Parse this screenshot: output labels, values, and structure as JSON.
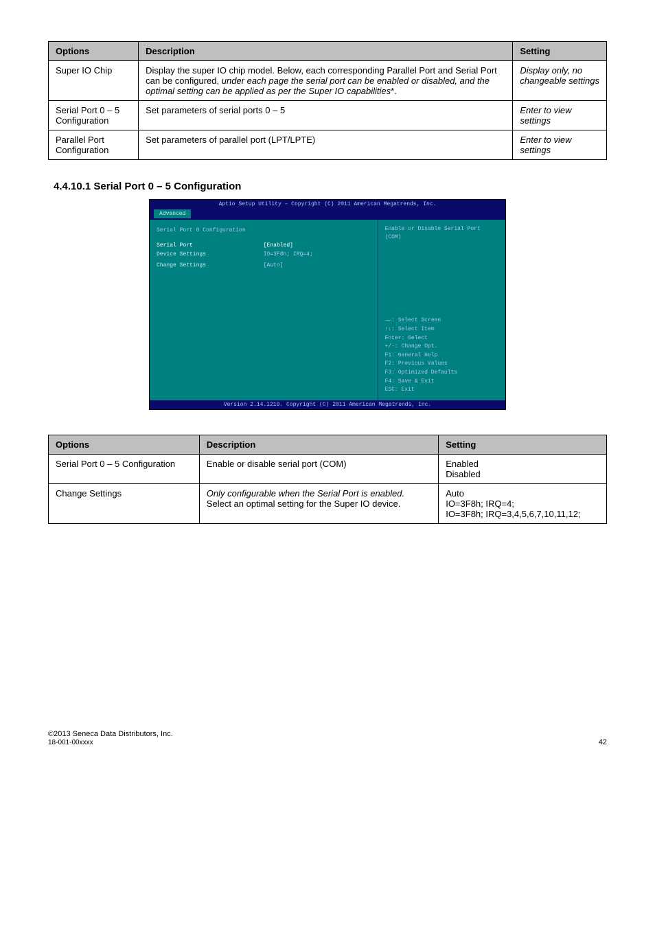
{
  "table1": {
    "headers": [
      "Options",
      "Description",
      "Setting"
    ],
    "rows": [
      [
        "Super IO Chip",
        "Display the super IO chip model. Below, each corresponding Parallel Port and Serial Port can be configured, <i>under each page the serial port can be enabled or disabled, and the optimal setting can be applied as per the Super IO capabilities</i>*.",
        "<i>Display only, no changeable settings</i>"
      ],
      [
        "Serial Port 0 – 5 Configuration",
        "Set parameters of serial ports 0 – 5",
        "<i>Enter to view settings</i>"
      ],
      [
        "Parallel Port Configuration",
        "Set parameters of parallel port (LPT/LPTE)",
        "<i>Enter to view settings</i>"
      ]
    ]
  },
  "section1_title": "4.4.10.1 Serial Port 0 – 5 Configuration",
  "bios": {
    "topbar": "Aptio Setup Utility – Copyright (C) 2011 American Megatrends, Inc.",
    "tab": "Advanced",
    "title": "Serial Port 0 Configuration",
    "rows": [
      {
        "k": "Serial Port",
        "v": "[Enabled]",
        "hl": true
      },
      {
        "k": "Device Settings",
        "v": "IO=3F8h; IRQ=4;",
        "hl": false
      },
      {
        "k": "",
        "v": "",
        "hl": false
      },
      {
        "k": "Change Settings",
        "v": "[Auto]",
        "hl": false
      }
    ],
    "right_desc": [
      "Enable or Disable Serial Port",
      "(COM)"
    ],
    "help": [
      "→←: Select Screen",
      "↑↓: Select Item",
      "Enter: Select",
      "+/-: Change Opt.",
      "F1: General Help",
      "F2: Previous Values",
      "F3: Optimized Defaults",
      "F4: Save & Exit",
      "ESC: Exit"
    ],
    "footer": "Version 2.14.1219. Copyright (C) 2011 American Megatrends, Inc."
  },
  "table2": {
    "headers": [
      "Options",
      "Description",
      "Setting"
    ],
    "rows": [
      [
        "Serial Port 0 – 5 Configuration",
        "Enable or disable serial port (COM)",
        "Enabled<br>Disabled"
      ],
      [
        "Change Settings",
        "<i>Only configurable when the Serial Port is enabled.</i><br>Select an optimal setting for the Super IO device.",
        "Auto<br>IO=3F8h; IRQ=4;<br>IO=3F8h; IRQ=3,4,5,6,7,10,11,12;"
      ]
    ]
  },
  "footer": {
    "copyright": "©2013 Seneca Data Distributors, Inc.",
    "docref": "18-001-00xxxx",
    "page": "42"
  }
}
